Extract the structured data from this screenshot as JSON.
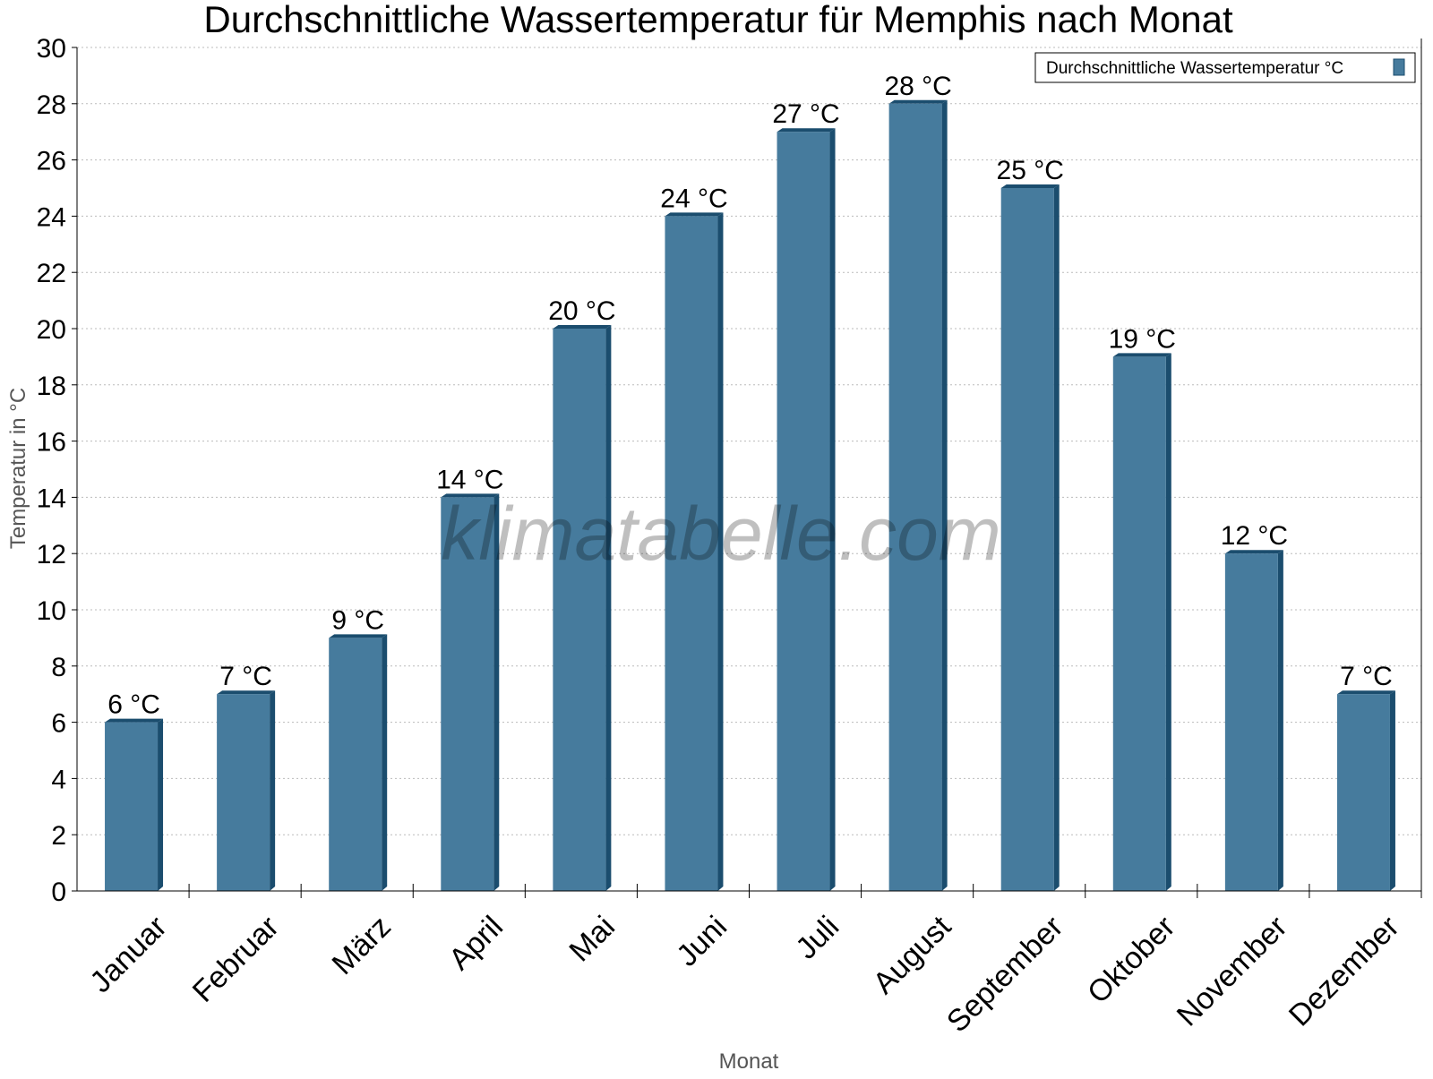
{
  "chart_data": {
    "type": "bar",
    "title": "Durchschnittliche Wassertemperatur für Memphis nach Monat",
    "xlabel": "Monat",
    "ylabel": "Temperatur in °C",
    "categories": [
      "Januar",
      "Februar",
      "März",
      "April",
      "Mai",
      "Juni",
      "Juli",
      "August",
      "September",
      "Oktober",
      "November",
      "Dezember"
    ],
    "series": [
      {
        "name": "Durchschnittliche Wassertemperatur °C",
        "values": [
          6,
          7,
          9,
          14,
          20,
          24,
          27,
          28,
          25,
          19,
          12,
          7
        ],
        "color": "#467b9d",
        "side_color": "#1b4d6e"
      }
    ],
    "value_suffix": " °C",
    "ylim": [
      0,
      30
    ],
    "yticks": [
      0,
      2,
      4,
      6,
      8,
      10,
      12,
      14,
      16,
      18,
      20,
      22,
      24,
      26,
      28,
      30
    ],
    "grid": true,
    "legend_position": "top-right",
    "watermark": "klimatabelle.com"
  }
}
